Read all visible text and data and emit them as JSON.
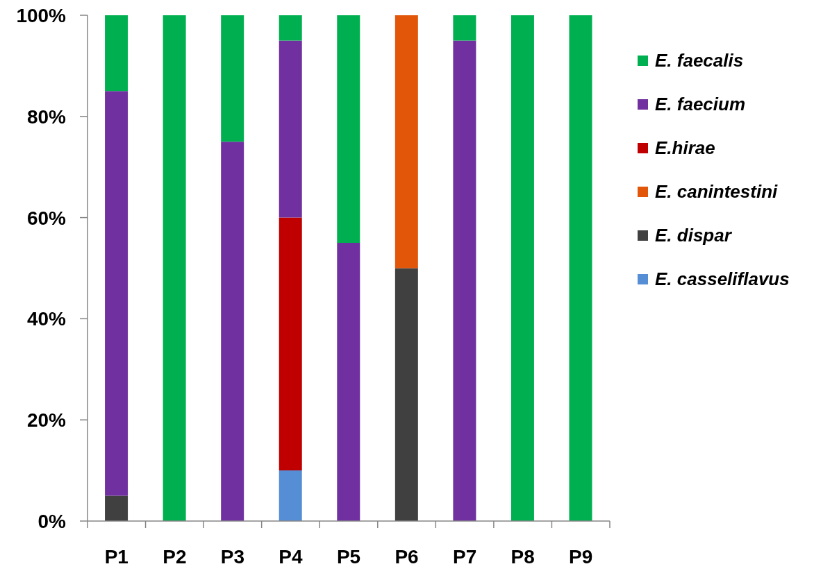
{
  "chart_data": {
    "type": "bar",
    "stacked": true,
    "categories": [
      "P1",
      "P2",
      "P3",
      "P4",
      "P5",
      "P6",
      "P7",
      "P8",
      "P9"
    ],
    "series": [
      {
        "name": "E. casseliflavus",
        "color": "#558ed5",
        "values": [
          null,
          null,
          null,
          10,
          null,
          null,
          null,
          null,
          null
        ]
      },
      {
        "name": "E. dispar",
        "color": "#404040",
        "values": [
          5,
          null,
          null,
          null,
          null,
          50,
          null,
          null,
          null
        ]
      },
      {
        "name": "E. canintestini",
        "color": "#e2560a",
        "values": [
          null,
          null,
          null,
          null,
          null,
          50,
          null,
          null,
          null
        ]
      },
      {
        "name": "E.hirae",
        "color": "#c00000",
        "values": [
          null,
          null,
          null,
          50,
          null,
          null,
          null,
          null,
          null
        ]
      },
      {
        "name": "E. faecium",
        "color": "#7030a0",
        "values": [
          80,
          null,
          75,
          35,
          55,
          null,
          95,
          null,
          null
        ]
      },
      {
        "name": "E. faecalis",
        "color": "#00b050",
        "values": [
          15,
          100,
          25,
          5,
          45,
          null,
          5,
          100,
          100
        ]
      }
    ],
    "ylim": [
      0,
      100
    ],
    "yticks": [
      {
        "value": 0,
        "label": "0%"
      },
      {
        "value": 20,
        "label": "20%"
      },
      {
        "value": 40,
        "label": "40%"
      },
      {
        "value": 60,
        "label": "60%"
      },
      {
        "value": 80,
        "label": "80%"
      },
      {
        "value": 100,
        "label": "100%"
      }
    ],
    "legend": "top right"
  }
}
